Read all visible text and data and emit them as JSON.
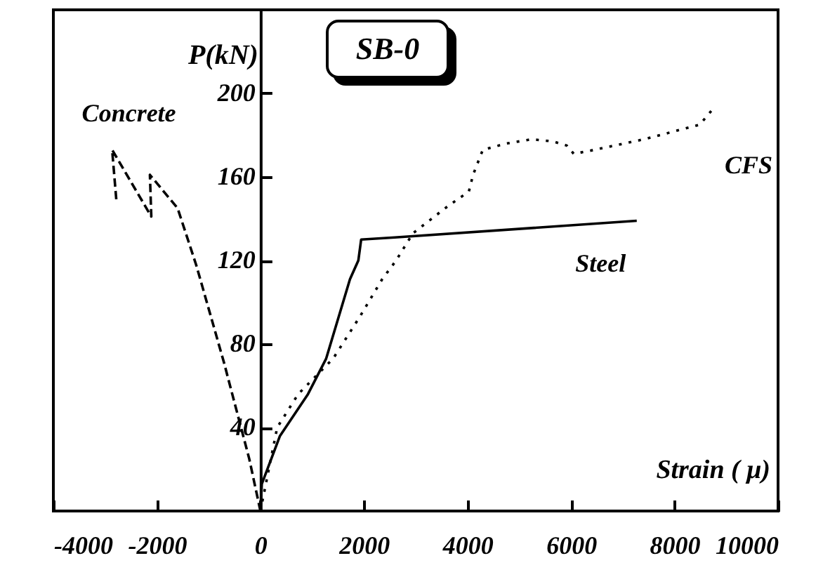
{
  "chart_data": {
    "type": "line",
    "title": "SB-0",
    "xlabel": "Strain ( μ)",
    "ylabel": "P(kN)",
    "xlim": [
      -4000,
      10000
    ],
    "xticks": [
      -4000,
      -2000,
      0,
      2000,
      4000,
      6000,
      8000,
      10000
    ],
    "ylim": [
      0,
      240
    ],
    "yticks": [
      40,
      80,
      120,
      160,
      200
    ],
    "grid": false,
    "marker": "none",
    "series": [
      {
        "name": "Concrete",
        "color": "#000000",
        "line_style": "dashed",
        "x": [
          0,
          -216,
          -703,
          -1162,
          -1243,
          -1600,
          -2135,
          -2108,
          -2865,
          -2784
        ],
        "values": [
          0,
          25,
          71,
          111,
          118,
          145,
          161,
          141,
          173,
          149
        ]
      },
      {
        "name": "Steel",
        "color": "#000000",
        "line_style": "solid",
        "x": [
          0,
          27,
          378,
          919,
          1270,
          1730,
          1892,
          1946,
          2595,
          7270
        ],
        "values": [
          0,
          13,
          36,
          56,
          73,
          111,
          120,
          130,
          131,
          139
        ]
      },
      {
        "name": "CFS",
        "color": "#000000",
        "line_style": "dotted",
        "x": [
          0,
          324,
          730,
          1405,
          1919,
          2352,
          2622,
          2946,
          3622,
          4027,
          4108,
          4297,
          4757,
          5243,
          5649,
          5919,
          6054,
          6460,
          7406,
          8487,
          8757
        ],
        "values": [
          0,
          40,
          56,
          73,
          93,
          111,
          120,
          133,
          146,
          153,
          161,
          173,
          176,
          178,
          177,
          175,
          171,
          173,
          178,
          185,
          193
        ]
      }
    ]
  }
}
